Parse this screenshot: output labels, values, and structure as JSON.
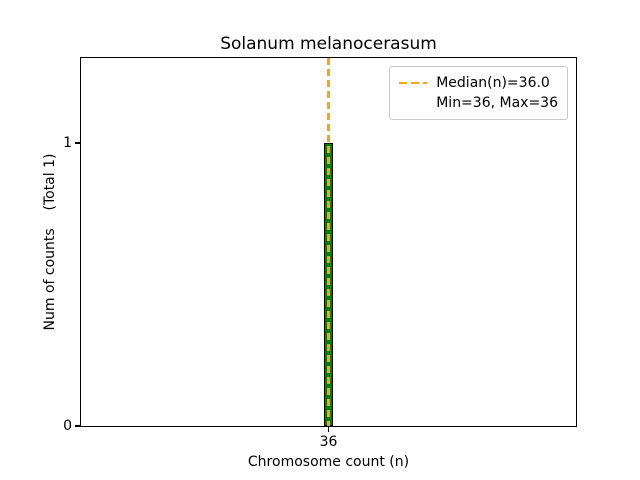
{
  "chart_data": {
    "type": "bar",
    "title": "Solanum melanocerasum",
    "xlabel": "Chromosome count (n)",
    "ylabel": "Num of counts    (Total 1)",
    "categories": [
      36
    ],
    "values": [
      1
    ],
    "bars": [
      {
        "x": 36,
        "count": 1
      }
    ],
    "bar_width_data": 0.02,
    "xlim": [
      35.5,
      36.5
    ],
    "ylim": [
      0,
      1.3
    ],
    "xticks": [
      36
    ],
    "yticks": [
      0,
      1
    ],
    "xtick_labels": [
      "36"
    ],
    "ytick_labels": [
      "0",
      "1"
    ],
    "median": 36.0,
    "min": 36,
    "max": 36,
    "total_counts": 1,
    "grid": false,
    "bar_color": "#008000",
    "bar_edge_color": "#000000",
    "median_line_color": "#ffa500",
    "legend": {
      "position": "upper right",
      "entries": [
        {
          "label": "Median(n)=36.0",
          "sample": "dashed-line"
        },
        {
          "label": "Min=36, Max=36",
          "sample": "none"
        }
      ]
    }
  }
}
